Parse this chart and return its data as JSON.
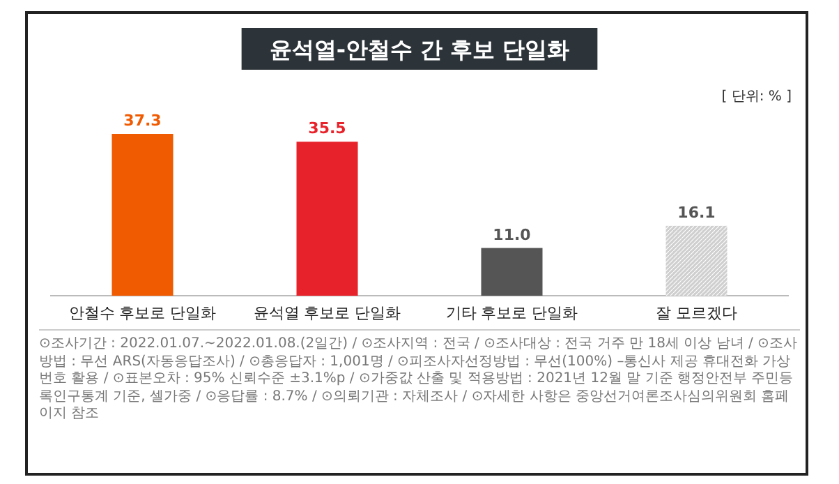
{
  "chart_data": {
    "type": "bar",
    "title": "윤석열-안철수 간 후보 단일화",
    "subtitle": "[ 단위: % ]",
    "categories": [
      "안철수 후보로 단일화",
      "윤석열 후보로 단일화",
      "기타 후보로 단일화",
      "잘 모르겠다"
    ],
    "values": [
      37.3,
      35.5,
      11.0,
      16.1
    ],
    "colors": [
      "#f05a00",
      "#e8222a",
      "#555555",
      "#cfcfcf"
    ],
    "data_labels": true,
    "value_labels": [
      "37.3",
      "35.5",
      "11.0",
      "16.1"
    ],
    "annotations": [
      "⊙조사기간 : 2022.01.07.~2022.01.08.(2일간) / ⊙조사지역 : 전국 / ⊙조사대상 : 전국 거주 만 18세 이상 남녀 / ⊙조사방법 : 무선 ARS(자동응답조사) / ⊙총응답자 : 1,001명 / ⊙피조사자선정방법 : 무선(100%) –통신사 제공 휴대전화 가상번호 활용 / ⊙표본오차 : 95% 신뢰수준 ±3.1%p / ⊙가중값 산출 및 적용방법 : 2021년 12월 말 기준 행정안전부 주민등록인구통계 기준, 셀가중 / ⊙응답률 : 8.7% / ⊙의뢰기관 : 자체조사 / ⊙자세한 사항은 중앙선거여론조사심의위원회 홈페이지 참조"
    ]
  }
}
